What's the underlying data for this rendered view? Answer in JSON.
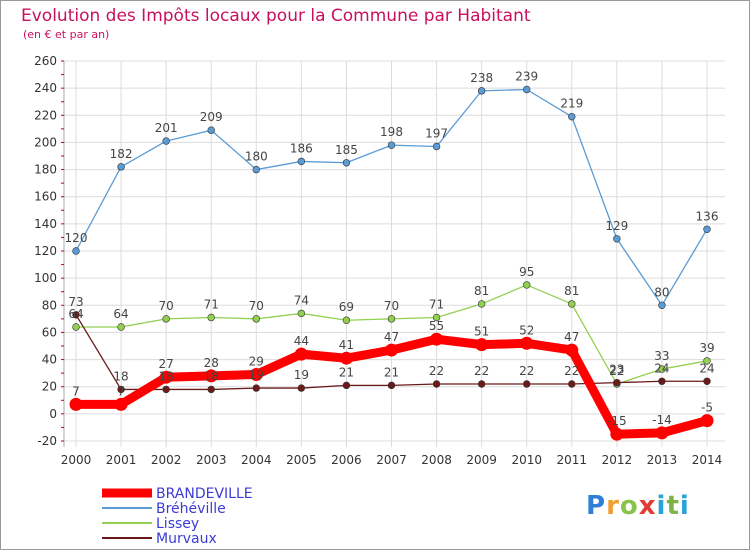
{
  "title": "Evolution des Impôts locaux pour la Commune par Habitant",
  "subtitle": "(en € et par an)",
  "logo_text": "Proxiti",
  "chart_data": {
    "type": "line",
    "title": "Evolution des Impôts locaux pour la Commune par Habitant",
    "subtitle": "(en € et par an)",
    "xlabel": "",
    "ylabel": "",
    "ylim": [
      -20,
      260
    ],
    "yticks": [
      -20,
      0,
      20,
      40,
      60,
      80,
      100,
      120,
      140,
      160,
      180,
      200,
      220,
      240,
      260
    ],
    "grid": true,
    "legend_position": "bottom-left",
    "categories": [
      "2000",
      "2001",
      "2002",
      "2003",
      "2004",
      "2005",
      "2006",
      "2007",
      "2008",
      "2009",
      "2010",
      "2011",
      "2012",
      "2013",
      "2014"
    ],
    "series": [
      {
        "name": "BRANDEVILLE",
        "color": "#ff0000",
        "bold": true,
        "values": [
          7,
          7,
          27,
          28,
          29,
          44,
          41,
          47,
          55,
          51,
          52,
          47,
          -15,
          -14,
          -5
        ]
      },
      {
        "name": "Bréhéville",
        "color": "#5b9bd5",
        "bold": false,
        "values": [
          120,
          182,
          201,
          209,
          180,
          186,
          185,
          198,
          197,
          238,
          239,
          219,
          129,
          80,
          136
        ]
      },
      {
        "name": "Lissey",
        "color": "#92d050",
        "bold": false,
        "values": [
          64,
          64,
          70,
          71,
          70,
          74,
          69,
          70,
          71,
          81,
          95,
          81,
          22,
          33,
          39
        ]
      },
      {
        "name": "Murvaux",
        "color": "#6b1a1a",
        "bold": false,
        "values": [
          73,
          18,
          18,
          18,
          19,
          19,
          21,
          21,
          22,
          22,
          22,
          22,
          23,
          24,
          24
        ]
      }
    ]
  }
}
